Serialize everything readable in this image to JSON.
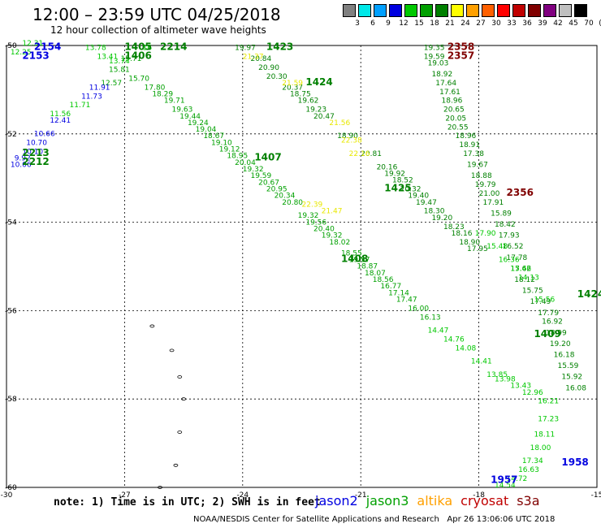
{
  "title": "12:00 – 23:59 UTC 04/25/2018",
  "subtitle": "12 hour collection of altimeter wave heights",
  "legend": {
    "colors": [
      "#808080",
      "#00e8e8",
      "#00a0ff",
      "#0000e0",
      "#00c800",
      "#00a000",
      "#008000",
      "#ffff00",
      "#ffa000",
      "#ff6000",
      "#ff0000",
      "#c00000",
      "#800000",
      "#800080",
      "#c0c0c0",
      "#000000"
    ],
    "labels": [
      "3",
      "6",
      "9",
      "12",
      "15",
      "18",
      "21",
      "24",
      "27",
      "30",
      "33",
      "36",
      "39",
      "42",
      "45",
      "70",
      "(ft)"
    ]
  },
  "map": {
    "lon_ticks": [
      "-30",
      "-27",
      "-24",
      "-21",
      "-18",
      "-15"
    ],
    "lat_ticks": [
      "-50",
      "-52",
      "-54",
      "-56",
      "-58",
      "-60"
    ],
    "track_labels": [
      {
        "lon": -29.3,
        "lat": -50.1,
        "text": "2154",
        "color": "#0000e0",
        "bold": true
      },
      {
        "lon": -29.6,
        "lat": -50.3,
        "text": "2153",
        "color": "#0000e0",
        "bold": true
      },
      {
        "lon": -27.0,
        "lat": -50.1,
        "text": "1405",
        "color": "#008000",
        "bold": true
      },
      {
        "lon": -27.0,
        "lat": -50.3,
        "text": "1406",
        "color": "#008000",
        "bold": true
      },
      {
        "lon": -26.1,
        "lat": -50.1,
        "text": "2214",
        "color": "#008000",
        "bold": true
      },
      {
        "lon": -23.4,
        "lat": -50.1,
        "text": "1423",
        "color": "#008000",
        "bold": true
      },
      {
        "lon": -22.4,
        "lat": -50.9,
        "text": "1424",
        "color": "#008000",
        "bold": true
      },
      {
        "lon": -18.8,
        "lat": -50.1,
        "text": "2358",
        "color": "#800000",
        "bold": true
      },
      {
        "lon": -18.8,
        "lat": -50.3,
        "text": "2357",
        "color": "#800000",
        "bold": true
      },
      {
        "lon": -29.6,
        "lat": -52.5,
        "text": "2213",
        "color": "#008000",
        "bold": true
      },
      {
        "lon": -29.6,
        "lat": -52.7,
        "text": "2212",
        "color": "#008000",
        "bold": true
      },
      {
        "lon": -23.7,
        "lat": -52.6,
        "text": "1407",
        "color": "#008000",
        "bold": true
      },
      {
        "lon": -20.4,
        "lat": -53.3,
        "text": "1425",
        "color": "#008000",
        "bold": true
      },
      {
        "lon": -17.3,
        "lat": -53.4,
        "text": "2356",
        "color": "#800000",
        "bold": true
      },
      {
        "lon": -21.5,
        "lat": -54.9,
        "text": "1408",
        "color": "#008000",
        "bold": true
      },
      {
        "lon": -16.6,
        "lat": -56.6,
        "text": "1409",
        "color": "#008000",
        "bold": true
      },
      {
        "lon": -15.5,
        "lat": -55.7,
        "text": "1424",
        "color": "#008000",
        "bold": true
      },
      {
        "lon": -15.9,
        "lat": -59.5,
        "text": "1958",
        "color": "#0000e0",
        "bold": true
      },
      {
        "lon": -17.7,
        "lat": -59.9,
        "text": "1957",
        "color": "#0000e0",
        "bold": true
      }
    ],
    "tracks": [
      {
        "name": "jason3 1405",
        "color": "#00a000",
        "points": [
          {
            "lon": -27.1,
            "lat": -50.35,
            "v": "15.71"
          },
          {
            "lon": -27.4,
            "lat": -50.6,
            "v": "15.81"
          },
          {
            "lon": -27.6,
            "lat": -50.9,
            "v": "12.57"
          },
          {
            "lon": -26.9,
            "lat": -50.8,
            "v": "15.70"
          },
          {
            "lon": -26.5,
            "lat": -51.0,
            "v": "17.80"
          },
          {
            "lon": -26.3,
            "lat": -51.15,
            "v": "18.29"
          },
          {
            "lon": -26.0,
            "lat": -51.3,
            "v": "19.71"
          },
          {
            "lon": -25.8,
            "lat": -51.5,
            "v": "19.63"
          },
          {
            "lon": -25.6,
            "lat": -51.65,
            "v": "19.44"
          },
          {
            "lon": -25.4,
            "lat": -51.8,
            "v": "19.24"
          },
          {
            "lon": -25.2,
            "lat": -51.95,
            "v": "19.04"
          },
          {
            "lon": -25.0,
            "lat": -52.1,
            "v": "18.67"
          },
          {
            "lon": -24.8,
            "lat": -52.25,
            "v": "19.10"
          },
          {
            "lon": -24.6,
            "lat": -52.4,
            "v": "19.12"
          },
          {
            "lon": -24.4,
            "lat": -52.55,
            "v": "18.95"
          },
          {
            "lon": -24.2,
            "lat": -52.7,
            "v": "20.04"
          },
          {
            "lon": -24.0,
            "lat": -52.85,
            "v": "19.32"
          },
          {
            "lon": -23.8,
            "lat": -53.0,
            "v": "19.59"
          },
          {
            "lon": -23.6,
            "lat": -53.15,
            "v": "20.67"
          },
          {
            "lon": -23.4,
            "lat": -53.3,
            "v": "20.95"
          },
          {
            "lon": -23.2,
            "lat": -53.45,
            "v": "20.34"
          },
          {
            "lon": -23.0,
            "lat": -53.6,
            "v": "20.80"
          },
          {
            "lon": -22.6,
            "lat": -53.9,
            "v": "19.32"
          },
          {
            "lon": -22.4,
            "lat": -54.05,
            "v": "19.56"
          },
          {
            "lon": -22.2,
            "lat": -54.2,
            "v": "20.40"
          },
          {
            "lon": -22.0,
            "lat": -54.35,
            "v": "19.32"
          },
          {
            "lon": -21.8,
            "lat": -54.5,
            "v": "18.02"
          },
          {
            "lon": -21.5,
            "lat": -54.75,
            "v": "18.55"
          },
          {
            "lon": -21.3,
            "lat": -54.9,
            "v": "19.57"
          },
          {
            "lon": -21.1,
            "lat": -55.05,
            "v": "18.87"
          },
          {
            "lon": -20.9,
            "lat": -55.2,
            "v": "18.07"
          },
          {
            "lon": -20.7,
            "lat": -55.35,
            "v": "18.56"
          },
          {
            "lon": -20.5,
            "lat": -55.5,
            "v": "16.77"
          },
          {
            "lon": -20.3,
            "lat": -55.65,
            "v": "17.14"
          },
          {
            "lon": -20.1,
            "lat": -55.8,
            "v": "17.47"
          },
          {
            "lon": -19.8,
            "lat": -56.0,
            "v": "16.00"
          },
          {
            "lon": -19.5,
            "lat": -56.2,
            "v": "16.13"
          }
        ]
      },
      {
        "name": "jason3 2212",
        "color": "#0000e0",
        "points": [
          {
            "lon": -27.9,
            "lat": -51.0,
            "v": "11.91"
          },
          {
            "lon": -28.1,
            "lat": -51.2,
            "v": "11.73"
          },
          {
            "lon": -28.9,
            "lat": -51.75,
            "v": "12.41"
          },
          {
            "lon": -29.3,
            "lat": -52.05,
            "v": "10.66"
          },
          {
            "lon": -29.5,
            "lat": -52.25,
            "v": "10.70"
          },
          {
            "lon": -29.6,
            "lat": -52.45,
            "v": "10.10"
          },
          {
            "lon": -29.8,
            "lat": -52.6,
            "v": "9.92"
          },
          {
            "lon": -29.9,
            "lat": -52.75,
            "v": "10.06"
          }
        ]
      },
      {
        "name": "jason3 2212b",
        "color": "#00c800",
        "points": [
          {
            "lon": -28.4,
            "lat": -51.4,
            "v": "11.71"
          },
          {
            "lon": -28.9,
            "lat": -51.6,
            "v": "11.56"
          }
        ]
      },
      {
        "name": "jason3 2154",
        "color": "#00c800",
        "points": [
          {
            "lon": -29.6,
            "lat": -50.0,
            "v": "12.31"
          },
          {
            "lon": -29.9,
            "lat": -50.2,
            "v": "12.25"
          },
          {
            "lon": -28.0,
            "lat": -50.1,
            "v": "13.78"
          },
          {
            "lon": -27.7,
            "lat": -50.3,
            "v": "13.41"
          },
          {
            "lon": -27.4,
            "lat": -50.4,
            "v": "13.74"
          },
          {
            "lon": -26.6,
            "lat": -50.1,
            "v": ".16"
          }
        ]
      },
      {
        "name": "jason3 1423",
        "color": "#008000",
        "points": [
          {
            "lon": -24.2,
            "lat": -50.1,
            "v": "19.97"
          },
          {
            "lon": -23.8,
            "lat": -50.35,
            "v": "20.84"
          },
          {
            "lon": -23.6,
            "lat": -50.55,
            "v": "20.90"
          },
          {
            "lon": -23.4,
            "lat": -50.75,
            "v": "20.30"
          },
          {
            "lon": -23.0,
            "lat": -51.0,
            "v": "20.37"
          },
          {
            "lon": -22.8,
            "lat": -51.15,
            "v": "18.75"
          },
          {
            "lon": -22.6,
            "lat": -51.3,
            "v": "19.62"
          },
          {
            "lon": -22.4,
            "lat": -51.5,
            "v": "19.23"
          },
          {
            "lon": -22.2,
            "lat": -51.65,
            "v": "20.47"
          },
          {
            "lon": -21.6,
            "lat": -52.1,
            "v": "18.90"
          },
          {
            "lon": -21.0,
            "lat": -52.5,
            "v": "20.81"
          },
          {
            "lon": -20.6,
            "lat": -52.8,
            "v": "20.16"
          },
          {
            "lon": -20.4,
            "lat": -52.95,
            "v": "19.92"
          },
          {
            "lon": -20.2,
            "lat": -53.1,
            "v": "18.52"
          },
          {
            "lon": -20.0,
            "lat": -53.3,
            "v": "20.32"
          },
          {
            "lon": -19.8,
            "lat": -53.45,
            "v": "19.40"
          },
          {
            "lon": -19.6,
            "lat": -53.6,
            "v": "19.47"
          },
          {
            "lon": -19.4,
            "lat": -53.8,
            "v": "18.30"
          },
          {
            "lon": -19.2,
            "lat": -53.95,
            "v": "19.20"
          },
          {
            "lon": -18.9,
            "lat": -54.15,
            "v": "18.23"
          },
          {
            "lon": -18.7,
            "lat": -54.3,
            "v": "18.16"
          },
          {
            "lon": -18.5,
            "lat": -54.5,
            "v": "18.90"
          },
          {
            "lon": -18.3,
            "lat": -54.65,
            "v": "17.95"
          }
        ]
      },
      {
        "name": "altika 1423",
        "color": "#e8e800",
        "points": [
          {
            "lon": -24.0,
            "lat": -50.3,
            "v": "21.37"
          },
          {
            "lon": -23.0,
            "lat": -50.9,
            "v": "21.59"
          },
          {
            "lon": -21.8,
            "lat": -51.8,
            "v": "21.56"
          },
          {
            "lon": -21.5,
            "lat": -52.2,
            "v": "22.38"
          },
          {
            "lon": -21.3,
            "lat": -52.5,
            "v": "22.16"
          },
          {
            "lon": -22.0,
            "lat": -53.8,
            "v": "21.47"
          },
          {
            "lon": -22.5,
            "lat": -53.65,
            "v": "22.39"
          }
        ]
      },
      {
        "name": "jason3 2358",
        "color": "#008000",
        "points": [
          {
            "lon": -19.4,
            "lat": -50.1,
            "v": "19.35"
          },
          {
            "lon": -19.4,
            "lat": -50.3,
            "v": "19.59"
          },
          {
            "lon": -19.3,
            "lat": -50.45,
            "v": "19.03"
          },
          {
            "lon": -19.2,
            "lat": -50.7,
            "v": "18.92"
          },
          {
            "lon": -19.1,
            "lat": -50.9,
            "v": "17.64"
          },
          {
            "lon": -19.0,
            "lat": -51.1,
            "v": "17.61"
          },
          {
            "lon": -18.95,
            "lat": -51.3,
            "v": "18.96"
          },
          {
            "lon": -18.9,
            "lat": -51.5,
            "v": "20.65"
          },
          {
            "lon": -18.85,
            "lat": -51.7,
            "v": "20.05"
          },
          {
            "lon": -18.8,
            "lat": -51.9,
            "v": "20.55"
          },
          {
            "lon": -18.6,
            "lat": -52.1,
            "v": "18.96"
          },
          {
            "lon": -18.5,
            "lat": -52.3,
            "v": "18.91"
          },
          {
            "lon": -18.4,
            "lat": -52.5,
            "v": "17.38"
          },
          {
            "lon": -18.3,
            "lat": -52.75,
            "v": "19.67"
          },
          {
            "lon": -18.2,
            "lat": -53.0,
            "v": "18.88"
          },
          {
            "lon": -18.1,
            "lat": -53.2,
            "v": "19.79"
          },
          {
            "lon": -18.0,
            "lat": -53.4,
            "v": "21.00"
          },
          {
            "lon": -17.9,
            "lat": -53.6,
            "v": "17.91"
          },
          {
            "lon": -17.7,
            "lat": -53.85,
            "v": "15.89"
          },
          {
            "lon": -17.6,
            "lat": -54.1,
            "v": "18.42"
          },
          {
            "lon": -17.5,
            "lat": -54.35,
            "v": "17.93"
          },
          {
            "lon": -17.4,
            "lat": -54.6,
            "v": "16.52"
          },
          {
            "lon": -17.3,
            "lat": -54.85,
            "v": "17.78"
          },
          {
            "lon": -17.2,
            "lat": -55.1,
            "v": "17.62"
          },
          {
            "lon": -17.1,
            "lat": -55.35,
            "v": "18.12"
          },
          {
            "lon": -16.9,
            "lat": -55.6,
            "v": "15.75"
          },
          {
            "lon": -16.7,
            "lat": -55.85,
            "v": "17.49"
          },
          {
            "lon": -16.5,
            "lat": -56.1,
            "v": "17.79"
          },
          {
            "lon": -16.4,
            "lat": -56.3,
            "v": "16.92"
          },
          {
            "lon": -16.3,
            "lat": -56.55,
            "v": "18.99"
          },
          {
            "lon": -16.2,
            "lat": -56.8,
            "v": "19.20"
          },
          {
            "lon": -16.1,
            "lat": -57.05,
            "v": "16.18"
          },
          {
            "lon": -16.0,
            "lat": -57.3,
            "v": "15.59"
          },
          {
            "lon": -15.9,
            "lat": -57.55,
            "v": "15.92"
          },
          {
            "lon": -15.8,
            "lat": -57.8,
            "v": "16.08"
          }
        ]
      },
      {
        "name": "jason3 1425",
        "color": "#00c800",
        "points": [
          {
            "lon": -18.1,
            "lat": -54.3,
            "v": "17.90"
          },
          {
            "lon": -17.8,
            "lat": -54.6,
            "v": "15.48"
          },
          {
            "lon": -17.5,
            "lat": -54.9,
            "v": "16.36"
          },
          {
            "lon": -17.2,
            "lat": -55.1,
            "v": "15.46"
          },
          {
            "lon": -17.0,
            "lat": -55.3,
            "v": "14.13"
          },
          {
            "lon": -16.6,
            "lat": -55.8,
            "v": "15.56"
          }
        ]
      },
      {
        "name": "jason3 1408",
        "color": "#00c800",
        "points": [
          {
            "lon": -19.3,
            "lat": -56.5,
            "v": "14.47"
          },
          {
            "lon": -18.9,
            "lat": -56.7,
            "v": "14.76"
          },
          {
            "lon": -18.6,
            "lat": -56.9,
            "v": "14.08"
          },
          {
            "lon": -18.2,
            "lat": -57.2,
            "v": "14.41"
          },
          {
            "lon": -17.8,
            "lat": -57.5,
            "v": "13.85"
          },
          {
            "lon": -17.6,
            "lat": -57.6,
            "v": "13.98"
          },
          {
            "lon": -17.2,
            "lat": -57.75,
            "v": "13.43"
          },
          {
            "lon": -16.9,
            "lat": -57.9,
            "v": "12.96"
          }
        ]
      },
      {
        "name": "jason3 south",
        "color": "#00c800",
        "points": [
          {
            "lon": -16.5,
            "lat": -58.1,
            "v": "16.21"
          },
          {
            "lon": -16.5,
            "lat": -58.5,
            "v": "17.23"
          },
          {
            "lon": -16.6,
            "lat": -58.85,
            "v": "18.11"
          },
          {
            "lon": -16.7,
            "lat": -59.15,
            "v": "18.00"
          },
          {
            "lon": -16.9,
            "lat": -59.45,
            "v": "17.34"
          },
          {
            "lon": -17.0,
            "lat": -59.65,
            "v": "16.63"
          },
          {
            "lon": -17.3,
            "lat": -59.85,
            "v": "14.72"
          },
          {
            "lon": -17.6,
            "lat": -60.0,
            "v": "14.54"
          }
        ]
      }
    ]
  },
  "note": "note: 1) Time is in UTC; 2) SWH is in feet",
  "satellites": [
    {
      "name": "jason2",
      "color": "#0000e0"
    },
    {
      "name": "jason3",
      "color": "#00a000"
    },
    {
      "name": "altika",
      "color": "#ffa000"
    },
    {
      "name": "cryosat",
      "color": "#c00000"
    },
    {
      "name": "s3a",
      "color": "#800000"
    }
  ],
  "credit": "NOAA/NESDIS Center for Satellite Applications and Research",
  "timestamp": "Apr 26 13:06:06 UTC 2018"
}
